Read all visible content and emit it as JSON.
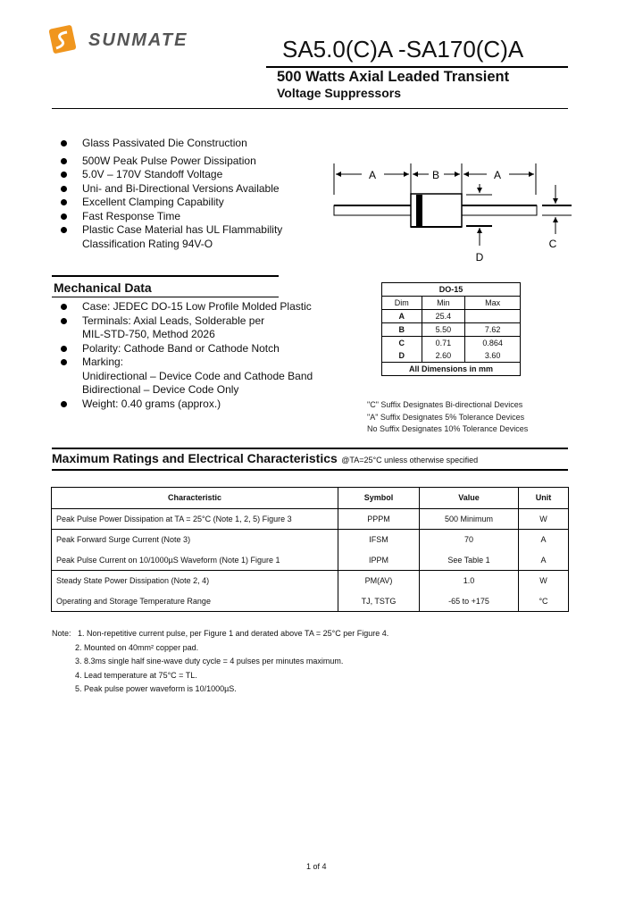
{
  "header": {
    "logo_text": "SUNMATE",
    "title": "SA5.0(C)A -SA170(C)A",
    "subtitle1": "500 Watts Axial Leaded Transient",
    "subtitle2": "Voltage Suppressors"
  },
  "features": [
    "Glass Passivated Die Construction",
    "500W Peak Pulse Power Dissipation",
    "5.0V – 170V Standoff Voltage",
    "Uni- and Bi-Directional Versions Available",
    "Excellent Clamping Capability",
    "Fast Response Time",
    "Plastic Case Material has UL Flammability",
    "Classification Rating 94V-O"
  ],
  "mechanical": {
    "heading": "Mechanical Data",
    "items": [
      "Case: JEDEC DO-15 Low Profile Molded Plastic",
      "Terminals: Axial Leads, Solderable per",
      "MIL-STD-750, Method 2026",
      "Polarity: Cathode Band or Cathode Notch",
      "Marking:",
      "Unidirectional – Device Code and Cathode Band",
      "Bidirectional – Device Code Only",
      "Weight: 0.40 grams (approx.)"
    ]
  },
  "diagram": {
    "labels": {
      "a1": "A",
      "b": "B",
      "a2": "A",
      "c": "C",
      "d": "D"
    }
  },
  "dim_table": {
    "title": "DO-15",
    "headers": [
      "Dim",
      "Min",
      "Max"
    ],
    "rows": [
      [
        "A",
        "25.4",
        ""
      ],
      [
        "B",
        "5.50",
        "7.62"
      ],
      [
        "C",
        "0.71",
        "0.864"
      ],
      [
        "D",
        "2.60",
        "3.60"
      ]
    ],
    "footer": "All Dimensions in mm"
  },
  "suffix_notes": [
    "\"C\" Suffix Designates Bi-directional Devices",
    "\"A\" Suffix Designates 5% Tolerance Devices",
    "No Suffix Designates 10% Tolerance Devices"
  ],
  "ratings": {
    "heading": "Maximum Ratings and Electrical Characteristics",
    "condition": "@TA=25°C unless otherwise specified",
    "headers": [
      "Characteristic",
      "Symbol",
      "Value",
      "Unit"
    ],
    "rows": [
      [
        "Peak Pulse Power Dissipation at TA = 25°C (Note 1, 2, 5) Figure 3",
        "PPPM",
        "500 Minimum",
        "W"
      ],
      [
        "Peak Forward Surge Current (Note 3)",
        "IFSM",
        "70",
        "A"
      ],
      [
        "Peak Pulse Current on 10/1000µS Waveform (Note 1) Figure 1",
        "IPPM",
        "See Table 1",
        "A"
      ],
      [
        "Steady State Power Dissipation (Note 2, 4)",
        "PM(AV)",
        "1.0",
        "W"
      ],
      [
        "Operating and Storage Temperature Range",
        "TJ, TSTG",
        "-65 to +175",
        "°C"
      ]
    ]
  },
  "notes": {
    "label": "Note:",
    "items": [
      "1. Non-repetitive current pulse, per Figure 1 and derated above TA = 25°C per Figure 4.",
      "2. Mounted on 40mm² copper pad.",
      "3. 8.3ms single half sine-wave duty cycle = 4 pulses per minutes maximum.",
      "4. Lead temperature at 75°C = TL.",
      "5. Peak pulse power waveform is 10/1000µS."
    ]
  },
  "footer": {
    "page": "1 of 4"
  },
  "colors": {
    "logo_orange": "#f0961e",
    "logo_text": "#555555"
  }
}
